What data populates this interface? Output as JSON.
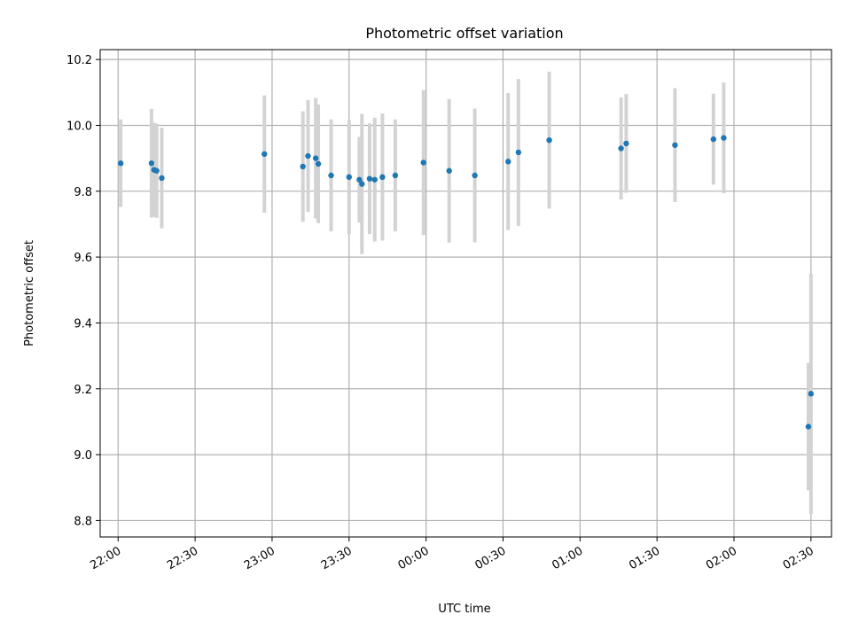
{
  "chart_data": {
    "type": "scatter",
    "title": "Photometric offset variation",
    "xlabel": "UTC time",
    "ylabel": "Photometric offset",
    "xlim": [
      "21:53",
      "02:38"
    ],
    "ylim": [
      8.75,
      10.23
    ],
    "x_ticks": [
      "22:00",
      "22:30",
      "23:00",
      "23:30",
      "00:00",
      "00:30",
      "01:00",
      "01:30",
      "02:00",
      "02:30"
    ],
    "y_ticks": [
      "8.8",
      "9.0",
      "9.2",
      "9.4",
      "9.6",
      "9.8",
      "10.0",
      "10.2"
    ],
    "grid": true,
    "error_bar_color": "#d3d3d3",
    "point_color": "#1f77b4",
    "points": [
      {
        "x": "22:01",
        "y": 9.885,
        "err": 0.133
      },
      {
        "x": "22:13",
        "y": 9.885,
        "err": 0.165
      },
      {
        "x": "22:14",
        "y": 9.865,
        "err": 0.143
      },
      {
        "x": "22:15",
        "y": 9.862,
        "err": 0.143
      },
      {
        "x": "22:17",
        "y": 9.84,
        "err": 0.153
      },
      {
        "x": "22:57",
        "y": 9.913,
        "err": 0.178
      },
      {
        "x": "23:12",
        "y": 9.875,
        "err": 0.168
      },
      {
        "x": "23:14",
        "y": 9.907,
        "err": 0.17
      },
      {
        "x": "23:17",
        "y": 9.9,
        "err": 0.183
      },
      {
        "x": "23:18",
        "y": 9.883,
        "err": 0.18
      },
      {
        "x": "23:23",
        "y": 9.848,
        "err": 0.17
      },
      {
        "x": "23:30",
        "y": 9.843,
        "err": 0.173
      },
      {
        "x": "23:34",
        "y": 9.835,
        "err": 0.13
      },
      {
        "x": "23:35",
        "y": 9.822,
        "err": 0.213
      },
      {
        "x": "23:38",
        "y": 9.838,
        "err": 0.168
      },
      {
        "x": "23:40",
        "y": 9.835,
        "err": 0.188
      },
      {
        "x": "23:43",
        "y": 9.843,
        "err": 0.193
      },
      {
        "x": "23:48",
        "y": 9.848,
        "err": 0.17
      },
      {
        "x": "23:59",
        "y": 9.887,
        "err": 0.22
      },
      {
        "x": "00:09",
        "y": 9.862,
        "err": 0.218
      },
      {
        "x": "00:19",
        "y": 9.848,
        "err": 0.203
      },
      {
        "x": "00:32",
        "y": 9.89,
        "err": 0.208
      },
      {
        "x": "00:36",
        "y": 9.918,
        "err": 0.223
      },
      {
        "x": "00:48",
        "y": 9.955,
        "err": 0.208
      },
      {
        "x": "01:16",
        "y": 9.93,
        "err": 0.155
      },
      {
        "x": "01:18",
        "y": 9.945,
        "err": 0.15
      },
      {
        "x": "01:37",
        "y": 9.94,
        "err": 0.173
      },
      {
        "x": "01:52",
        "y": 9.958,
        "err": 0.138
      },
      {
        "x": "01:56",
        "y": 9.962,
        "err": 0.168
      },
      {
        "x": "02:29",
        "y": 9.085,
        "err": 0.193
      },
      {
        "x": "02:30",
        "y": 9.185,
        "err": 0.365
      }
    ]
  }
}
